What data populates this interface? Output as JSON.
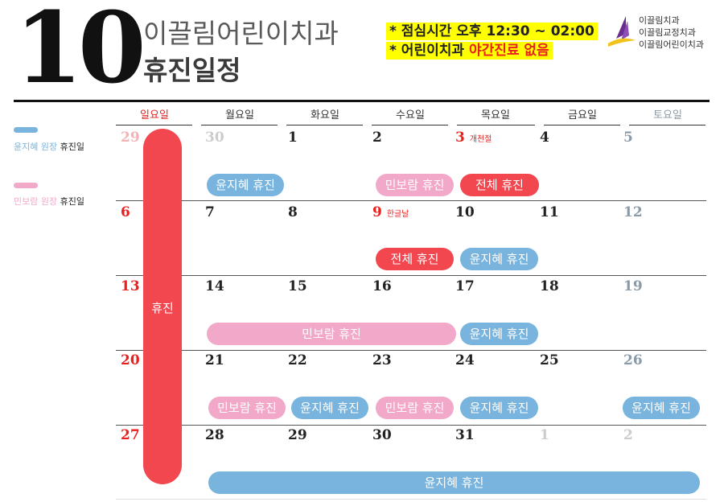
{
  "header": {
    "month": "10",
    "clinic_name": "이끌림어린이치과",
    "schedule_title": "휴진일정",
    "notice_lunch_prefix": "* 점심시간 ",
    "notice_lunch_time": "오후 12:30 ~ 02:00",
    "notice_night_prefix": "* 어린이치과 ",
    "notice_night_red": "야간진료 없음",
    "logo_lines": [
      "이끌림치과",
      "이끌림교정치과",
      "이끌림어린이치과"
    ]
  },
  "legend": {
    "yun_name": "윤지혜 원장",
    "yun_suffix": " 휴진일",
    "min_name": "민보람 원장",
    "min_suffix": " 휴진일"
  },
  "weekdays": [
    "일요일",
    "월요일",
    "화요일",
    "수요일",
    "목요일",
    "금요일",
    "토요일"
  ],
  "weeks": [
    [
      "29",
      "30",
      "1",
      "2",
      "3",
      "4",
      "5"
    ],
    [
      "6",
      "7",
      "8",
      "9",
      "10",
      "11",
      "12"
    ],
    [
      "13",
      "14",
      "15",
      "16",
      "17",
      "18",
      "19"
    ],
    [
      "20",
      "21",
      "22",
      "23",
      "24",
      "25",
      "26"
    ],
    [
      "27",
      "28",
      "29",
      "30",
      "31",
      "1",
      "2"
    ]
  ],
  "holidays": {
    "gaecheonjeol": "개천절",
    "hangulnal": "한글날"
  },
  "sunday_bar_label": "휴진",
  "events": {
    "yun": "윤지혜 휴진",
    "min": "민보람 휴진",
    "all": "전체 휴진"
  },
  "colors": {
    "yun": "#78b4de",
    "min": "#f2a9c9",
    "all": "#f2474f",
    "sunday": "#e8211f",
    "saturday": "#8a9aa6",
    "other_month": "#cccccc"
  }
}
